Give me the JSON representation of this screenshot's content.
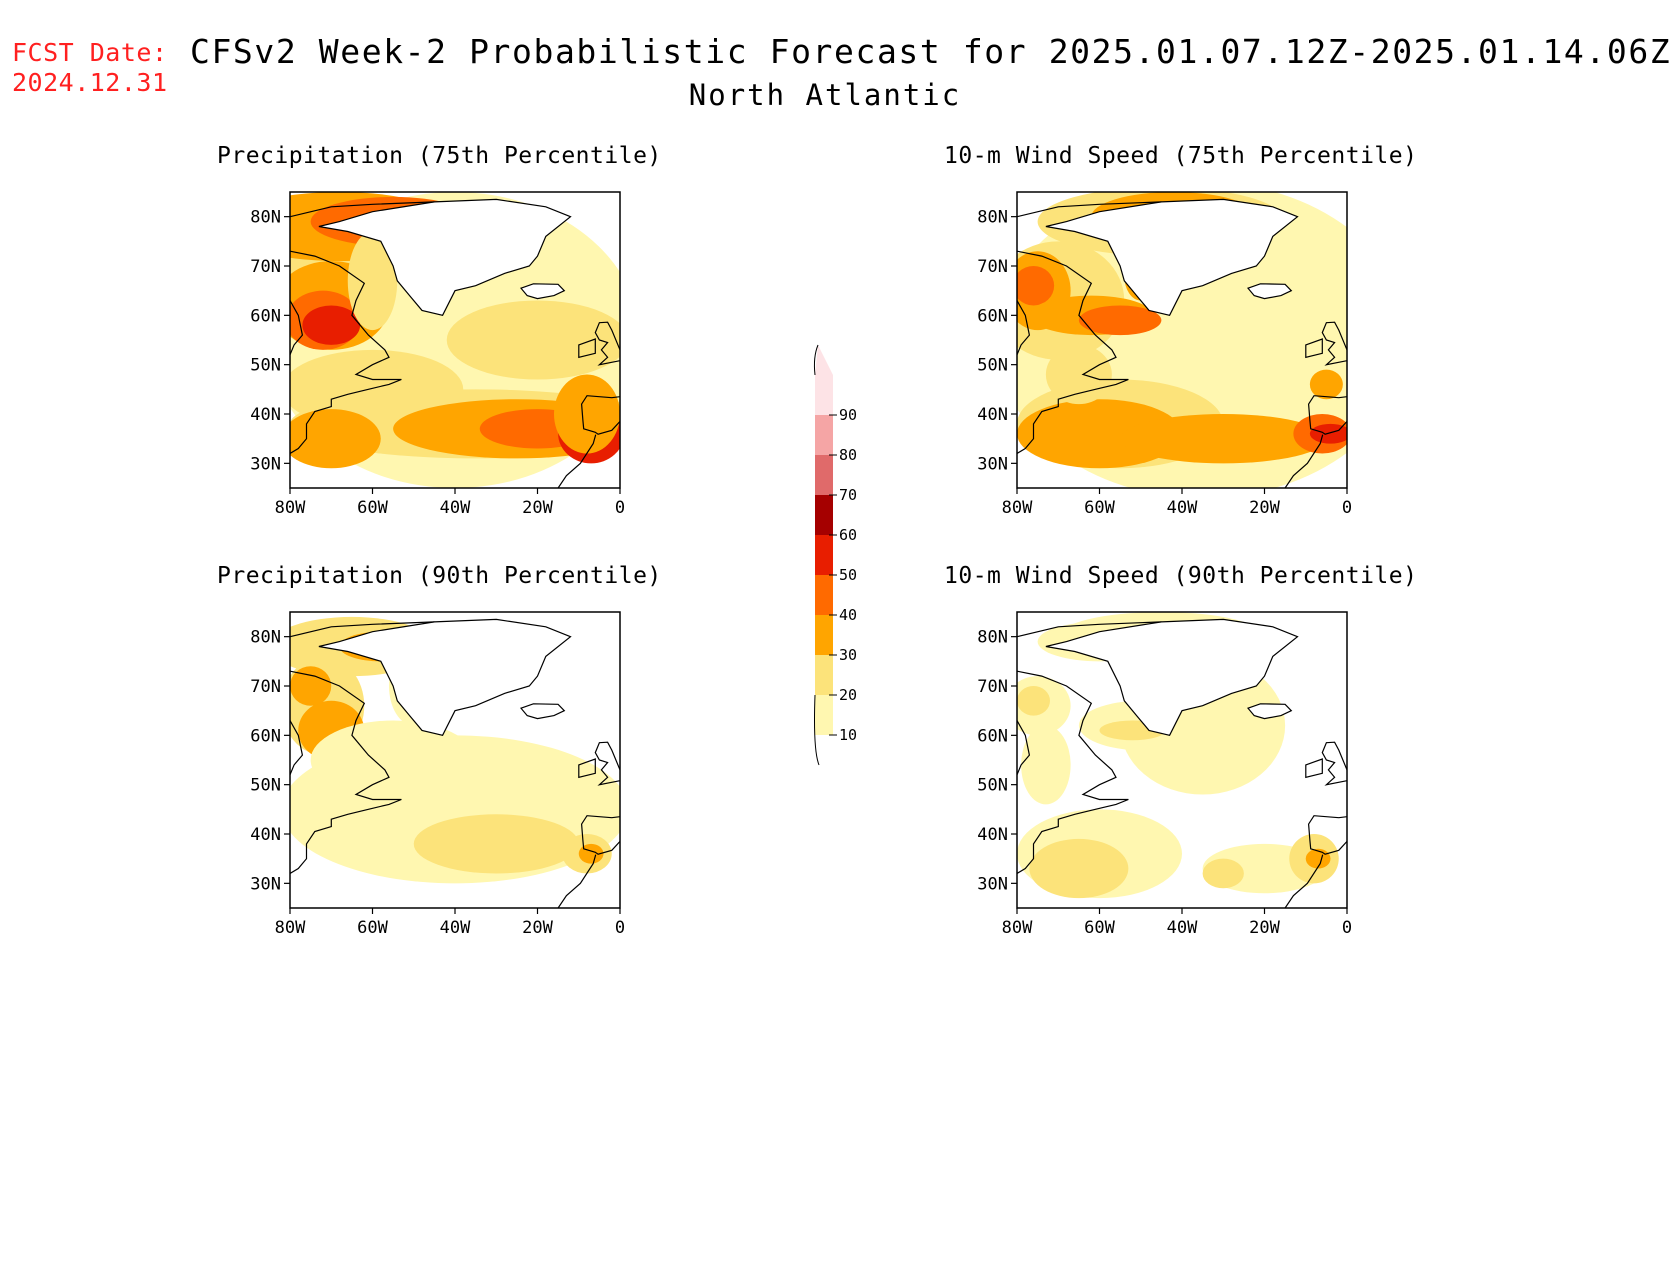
{
  "header": {
    "fcst_label": "FCST Date:",
    "fcst_date": "2024.12.31",
    "title": "CFSv2 Week-2 Probabilistic Forecast for 2025.01.07.12Z-2025.01.14.06Z",
    "subtitle": "North Atlantic"
  },
  "panels": [
    {
      "id": "precip75",
      "title": "Precipitation (75th Percentile)"
    },
    {
      "id": "wind75",
      "title": "10-m Wind Speed (75th Percentile)"
    },
    {
      "id": "precip90",
      "title": "Precipitation (90th Percentile)"
    },
    {
      "id": "wind90",
      "title": "10-m Wind Speed (90th Percentile)"
    }
  ],
  "axes": {
    "lat_labels": [
      "80N",
      "70N",
      "60N",
      "50N",
      "40N",
      "30N"
    ],
    "lon_labels": [
      "80W",
      "60W",
      "40W",
      "20W",
      "0"
    ]
  },
  "colorbar": {
    "levels": [
      "10",
      "20",
      "30",
      "40",
      "50",
      "60",
      "70",
      "80",
      "90"
    ],
    "colors": [
      "#fff7b0",
      "#fce37a",
      "#ffa500",
      "#ff6a00",
      "#e81e00",
      "#a50000",
      "#e06a6a",
      "#f5a5a5",
      "#fde3e6"
    ]
  },
  "map": {
    "extent": {
      "lon": [
        -80,
        0
      ],
      "lat": [
        25,
        85
      ]
    },
    "ocean_color": "#ffffff",
    "coastline_color": "#000000"
  }
}
